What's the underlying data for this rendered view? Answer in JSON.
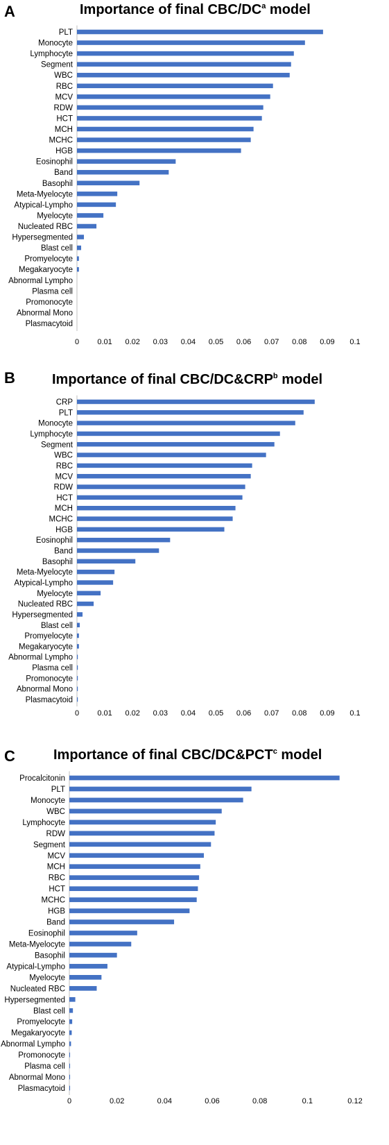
{
  "chart_data": [
    {
      "panel_label": "A",
      "type": "bar",
      "orientation": "horizontal",
      "title": "Importance of final CBC/DC",
      "title_superscript": "a",
      "title_suffix": " model",
      "xlim": [
        0,
        0.1
      ],
      "xticks": [
        "0",
        "0.01",
        "0.02",
        "0.03",
        "0.04",
        "0.05",
        "0.06",
        "0.07",
        "0.08",
        "0.09",
        "0.1"
      ],
      "categories": [
        "PLT",
        "Monocyte",
        "Lymphocyte",
        "Segment",
        "WBC",
        "RBC",
        "MCV",
        "RDW",
        "HCT",
        "MCH",
        "MCHC",
        "HGB",
        "Eosinophil",
        "Band",
        "Basophil",
        "Meta-Myelocyte",
        "Atypical-Lympho",
        "Myelocyte",
        "Nucleated RBC",
        "Hypersegmented",
        "Blast cell",
        "Promyelocyte",
        "Megakaryocyte",
        "Abnormal Lympho",
        "Plasma cell",
        "Promonocyte",
        "Abnormal Mono",
        "Plasmacytoid"
      ],
      "values": [
        0.0885,
        0.082,
        0.078,
        0.077,
        0.0765,
        0.0705,
        0.0695,
        0.067,
        0.0665,
        0.0635,
        0.0625,
        0.059,
        0.0355,
        0.033,
        0.0225,
        0.0145,
        0.014,
        0.0095,
        0.007,
        0.0025,
        0.0015,
        0.0007,
        0.0007,
        0,
        0,
        0,
        0,
        0
      ],
      "grid": false
    },
    {
      "panel_label": "B",
      "type": "bar",
      "orientation": "horizontal",
      "title": "Importance of final CBC/DC&CRP",
      "title_superscript": "b",
      "title_suffix": " model",
      "xlim": [
        0,
        0.1
      ],
      "xticks": [
        "0",
        "0.01",
        "0.02",
        "0.03",
        "0.04",
        "0.05",
        "0.06",
        "0.07",
        "0.08",
        "0.09",
        "0.1"
      ],
      "categories": [
        "CRP",
        "PLT",
        "Monocyte",
        "Lymphocyte",
        "Segment",
        "WBC",
        "RBC",
        "MCV",
        "RDW",
        "HCT",
        "MCH",
        "MCHC",
        "HGB",
        "Eosinophil",
        "Band",
        "Basophil",
        "Meta-Myelocyte",
        "Atypical-Lympho",
        "Myelocyte",
        "Nucleated RBC",
        "Hypersegmented",
        "Blast cell",
        "Promyelocyte",
        "Megakaryocyte",
        "Abnormal Lympho",
        "Plasma cell",
        "Promonocyte",
        "Abnormal Mono",
        "Plasmacytoid"
      ],
      "values": [
        0.0855,
        0.0815,
        0.0785,
        0.073,
        0.071,
        0.068,
        0.063,
        0.0625,
        0.0605,
        0.0595,
        0.057,
        0.056,
        0.053,
        0.0335,
        0.0295,
        0.021,
        0.0135,
        0.013,
        0.0085,
        0.006,
        0.002,
        0.001,
        0.0007,
        0.0007,
        0.0003,
        0.0003,
        0.0003,
        0.0003,
        0.0003
      ],
      "grid": false
    },
    {
      "panel_label": "C",
      "type": "bar",
      "orientation": "horizontal",
      "title": "Importance of final CBC/DC&PCT",
      "title_superscript": "c",
      "title_suffix": " model",
      "xlim": [
        0,
        0.12
      ],
      "xticks": [
        "0",
        "0.02",
        "0.04",
        "0.06",
        "0.08",
        "0.1",
        "0.12"
      ],
      "categories": [
        "Procalcitonin",
        "PLT",
        "Monocyte",
        "WBC",
        "Lymphocyte",
        "RDW",
        "Segment",
        "MCV",
        "MCH",
        "RBC",
        "HCT",
        "MCHC",
        "HGB",
        "Band",
        "Eosinophil",
        "Meta-Myelocyte",
        "Basophil",
        "Atypical-Lympho",
        "Myelocyte",
        "Nucleated RBC",
        "Hypersegmented",
        "Blast cell",
        "Promyelocyte",
        "Megakaryocyte",
        "Abnormal Lympho",
        "Promonocyte",
        "Plasma cell",
        "Abnormal Mono",
        "Plasmacytoid"
      ],
      "values": [
        0.1135,
        0.0765,
        0.073,
        0.064,
        0.0615,
        0.061,
        0.0595,
        0.0565,
        0.055,
        0.0545,
        0.054,
        0.0535,
        0.0505,
        0.044,
        0.0285,
        0.026,
        0.02,
        0.016,
        0.0135,
        0.0115,
        0.0025,
        0.0015,
        0.0012,
        0.001,
        0.0007,
        0.0003,
        0.0003,
        0.0003,
        0.0003
      ],
      "grid": false
    }
  ]
}
